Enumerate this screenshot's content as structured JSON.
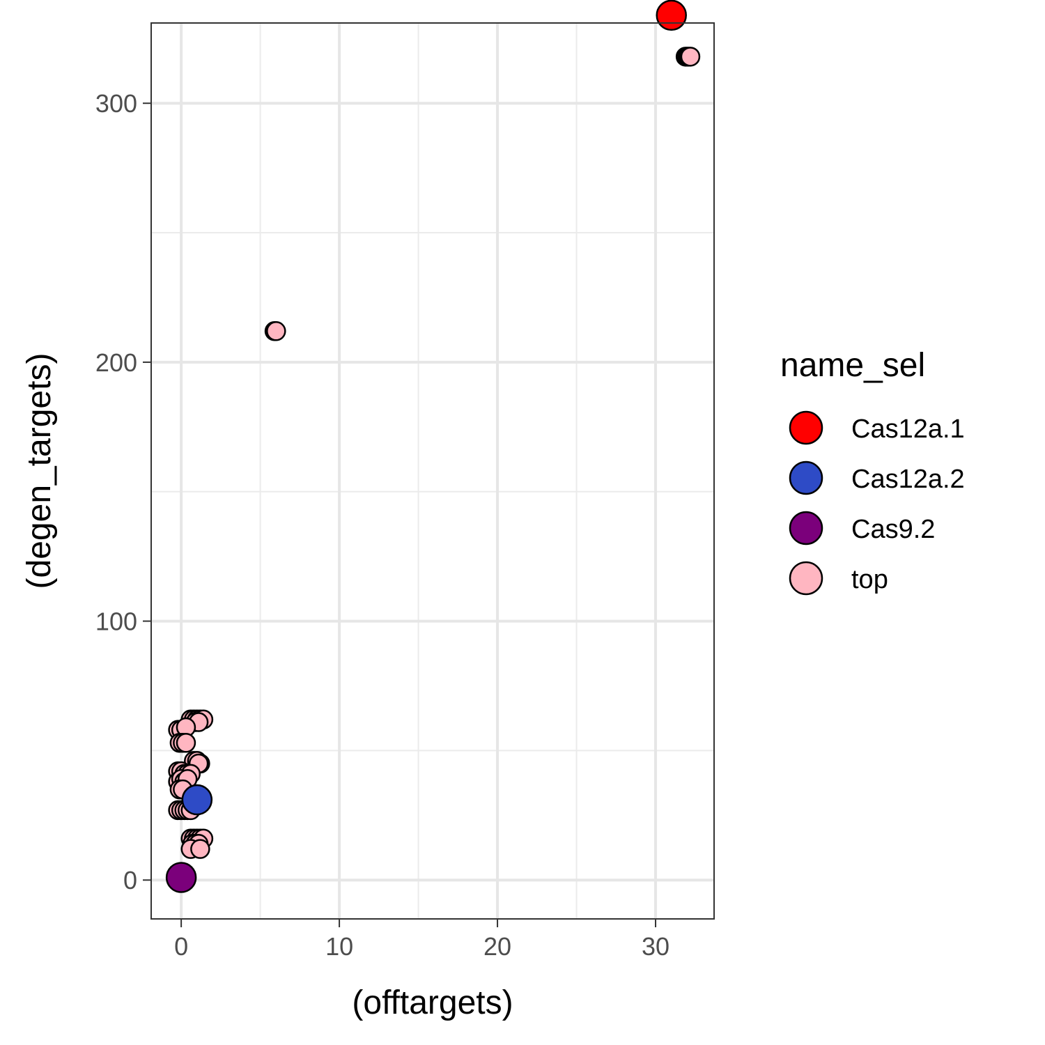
{
  "chart_data": {
    "type": "scatter",
    "xlabel": "(offtargets)",
    "ylabel": "(degen_targets)",
    "xlim": [
      -1.9,
      33.7
    ],
    "ylim": [
      -15,
      331
    ],
    "x_ticks": [
      0,
      10,
      20,
      30
    ],
    "y_ticks": [
      0,
      100,
      200,
      300
    ],
    "x_tick_labels": [
      "0",
      "10",
      "20",
      "30"
    ],
    "y_tick_labels": [
      "0",
      "100",
      "200",
      "300"
    ],
    "grid": true,
    "legend": {
      "title": "name_sel",
      "position": "right",
      "entries": [
        {
          "label": "Cas12a.1",
          "color": "#ff0000"
        },
        {
          "label": "Cas12a.2",
          "color": "#2e4bc6"
        },
        {
          "label": "Cas9.2",
          "color": "#7b007b"
        },
        {
          "label": "top",
          "color": "#ffb6c1"
        }
      ]
    },
    "series": [
      {
        "name": "top",
        "color": "#ffb6c1",
        "points": [
          [
            31.9,
            318
          ],
          [
            32.0,
            318
          ],
          [
            32.1,
            318
          ],
          [
            32.2,
            318
          ],
          [
            5.9,
            212
          ],
          [
            6.0,
            212
          ],
          [
            0.6,
            62
          ],
          [
            0.8,
            62
          ],
          [
            1.0,
            62
          ],
          [
            1.2,
            62
          ],
          [
            1.4,
            62
          ],
          [
            0.9,
            61
          ],
          [
            1.1,
            61
          ],
          [
            -0.2,
            58
          ],
          [
            0.0,
            58
          ],
          [
            0.3,
            59
          ],
          [
            -0.1,
            53
          ],
          [
            0.1,
            53
          ],
          [
            0.3,
            53
          ],
          [
            0.8,
            46
          ],
          [
            1.0,
            46
          ],
          [
            1.2,
            45
          ],
          [
            1.1,
            45
          ],
          [
            -0.2,
            42
          ],
          [
            0.0,
            42
          ],
          [
            0.2,
            41
          ],
          [
            0.4,
            41
          ],
          [
            0.6,
            41
          ],
          [
            -0.2,
            38
          ],
          [
            0.0,
            39
          ],
          [
            0.2,
            38
          ],
          [
            0.4,
            39
          ],
          [
            -0.1,
            35
          ],
          [
            0.1,
            35
          ],
          [
            -0.2,
            27
          ],
          [
            0.0,
            27
          ],
          [
            0.2,
            27
          ],
          [
            0.4,
            27
          ],
          [
            0.6,
            27
          ],
          [
            0.6,
            16
          ],
          [
            0.8,
            16
          ],
          [
            1.0,
            16
          ],
          [
            1.2,
            16
          ],
          [
            1.4,
            16
          ],
          [
            0.7,
            14
          ],
          [
            0.9,
            14
          ],
          [
            1.1,
            14
          ],
          [
            0.6,
            12
          ],
          [
            1.2,
            12
          ]
        ]
      },
      {
        "name": "Cas12a.1",
        "color": "#ff0000",
        "points": [
          [
            31.0,
            334
          ]
        ]
      },
      {
        "name": "Cas12a.2",
        "color": "#2e4bc6",
        "points": [
          [
            1.0,
            31
          ]
        ]
      },
      {
        "name": "Cas9.2",
        "color": "#7b007b",
        "points": [
          [
            0.0,
            1
          ]
        ]
      }
    ]
  }
}
